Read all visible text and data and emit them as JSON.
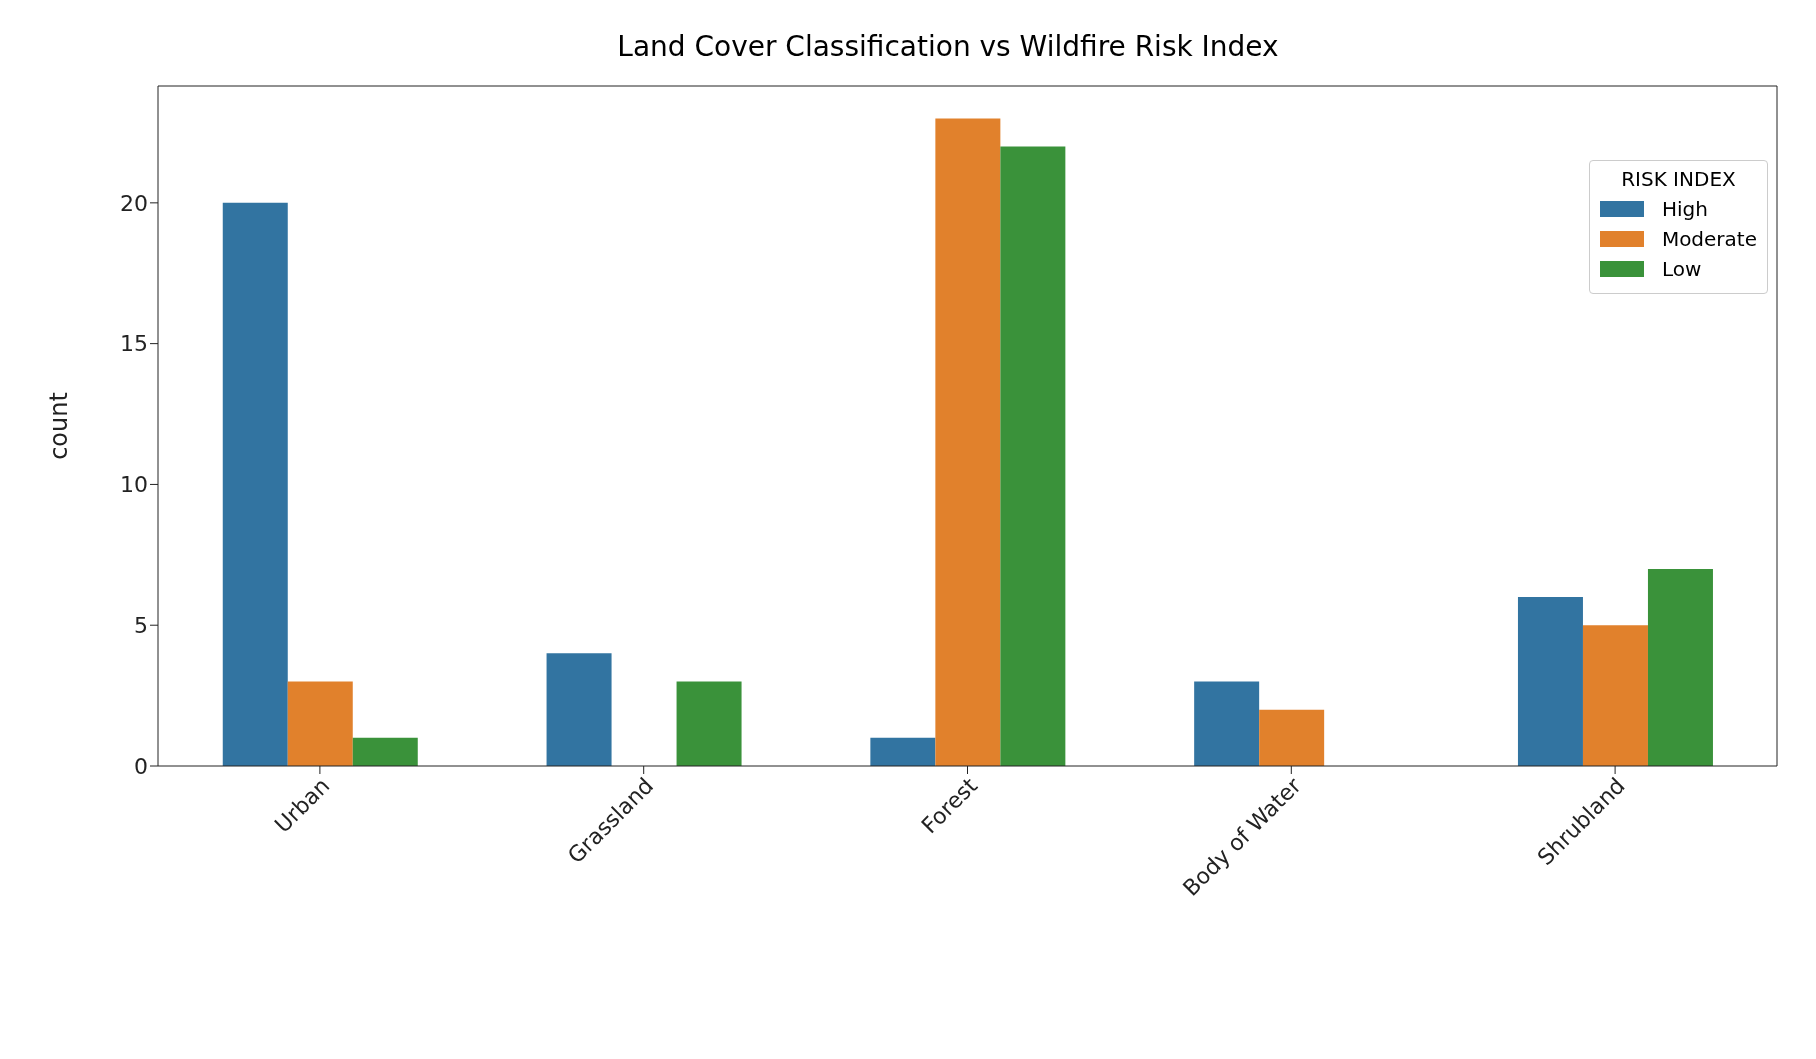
{
  "chart_data": {
    "type": "bar",
    "title": "Land Cover Classification vs Wildfire Risk Index",
    "ylabel": "count",
    "legend_title": "RISK INDEX",
    "categories": [
      "Urban",
      "Grassland",
      "Forest",
      "Body of Water",
      "Shrubland"
    ],
    "series": [
      {
        "name": "High",
        "color": "#3274a1",
        "values": [
          20,
          4,
          1,
          3,
          6
        ]
      },
      {
        "name": "Moderate",
        "color": "#e1812c",
        "values": [
          3,
          0,
          23,
          2,
          5
        ]
      },
      {
        "name": "Low",
        "color": "#3a923a",
        "values": [
          1,
          3,
          22,
          0,
          7
        ]
      }
    ],
    "ylim": [
      0,
      24.15
    ],
    "yticks": [
      0,
      5,
      10,
      15,
      20
    ],
    "grid": false,
    "legend": "top right"
  }
}
